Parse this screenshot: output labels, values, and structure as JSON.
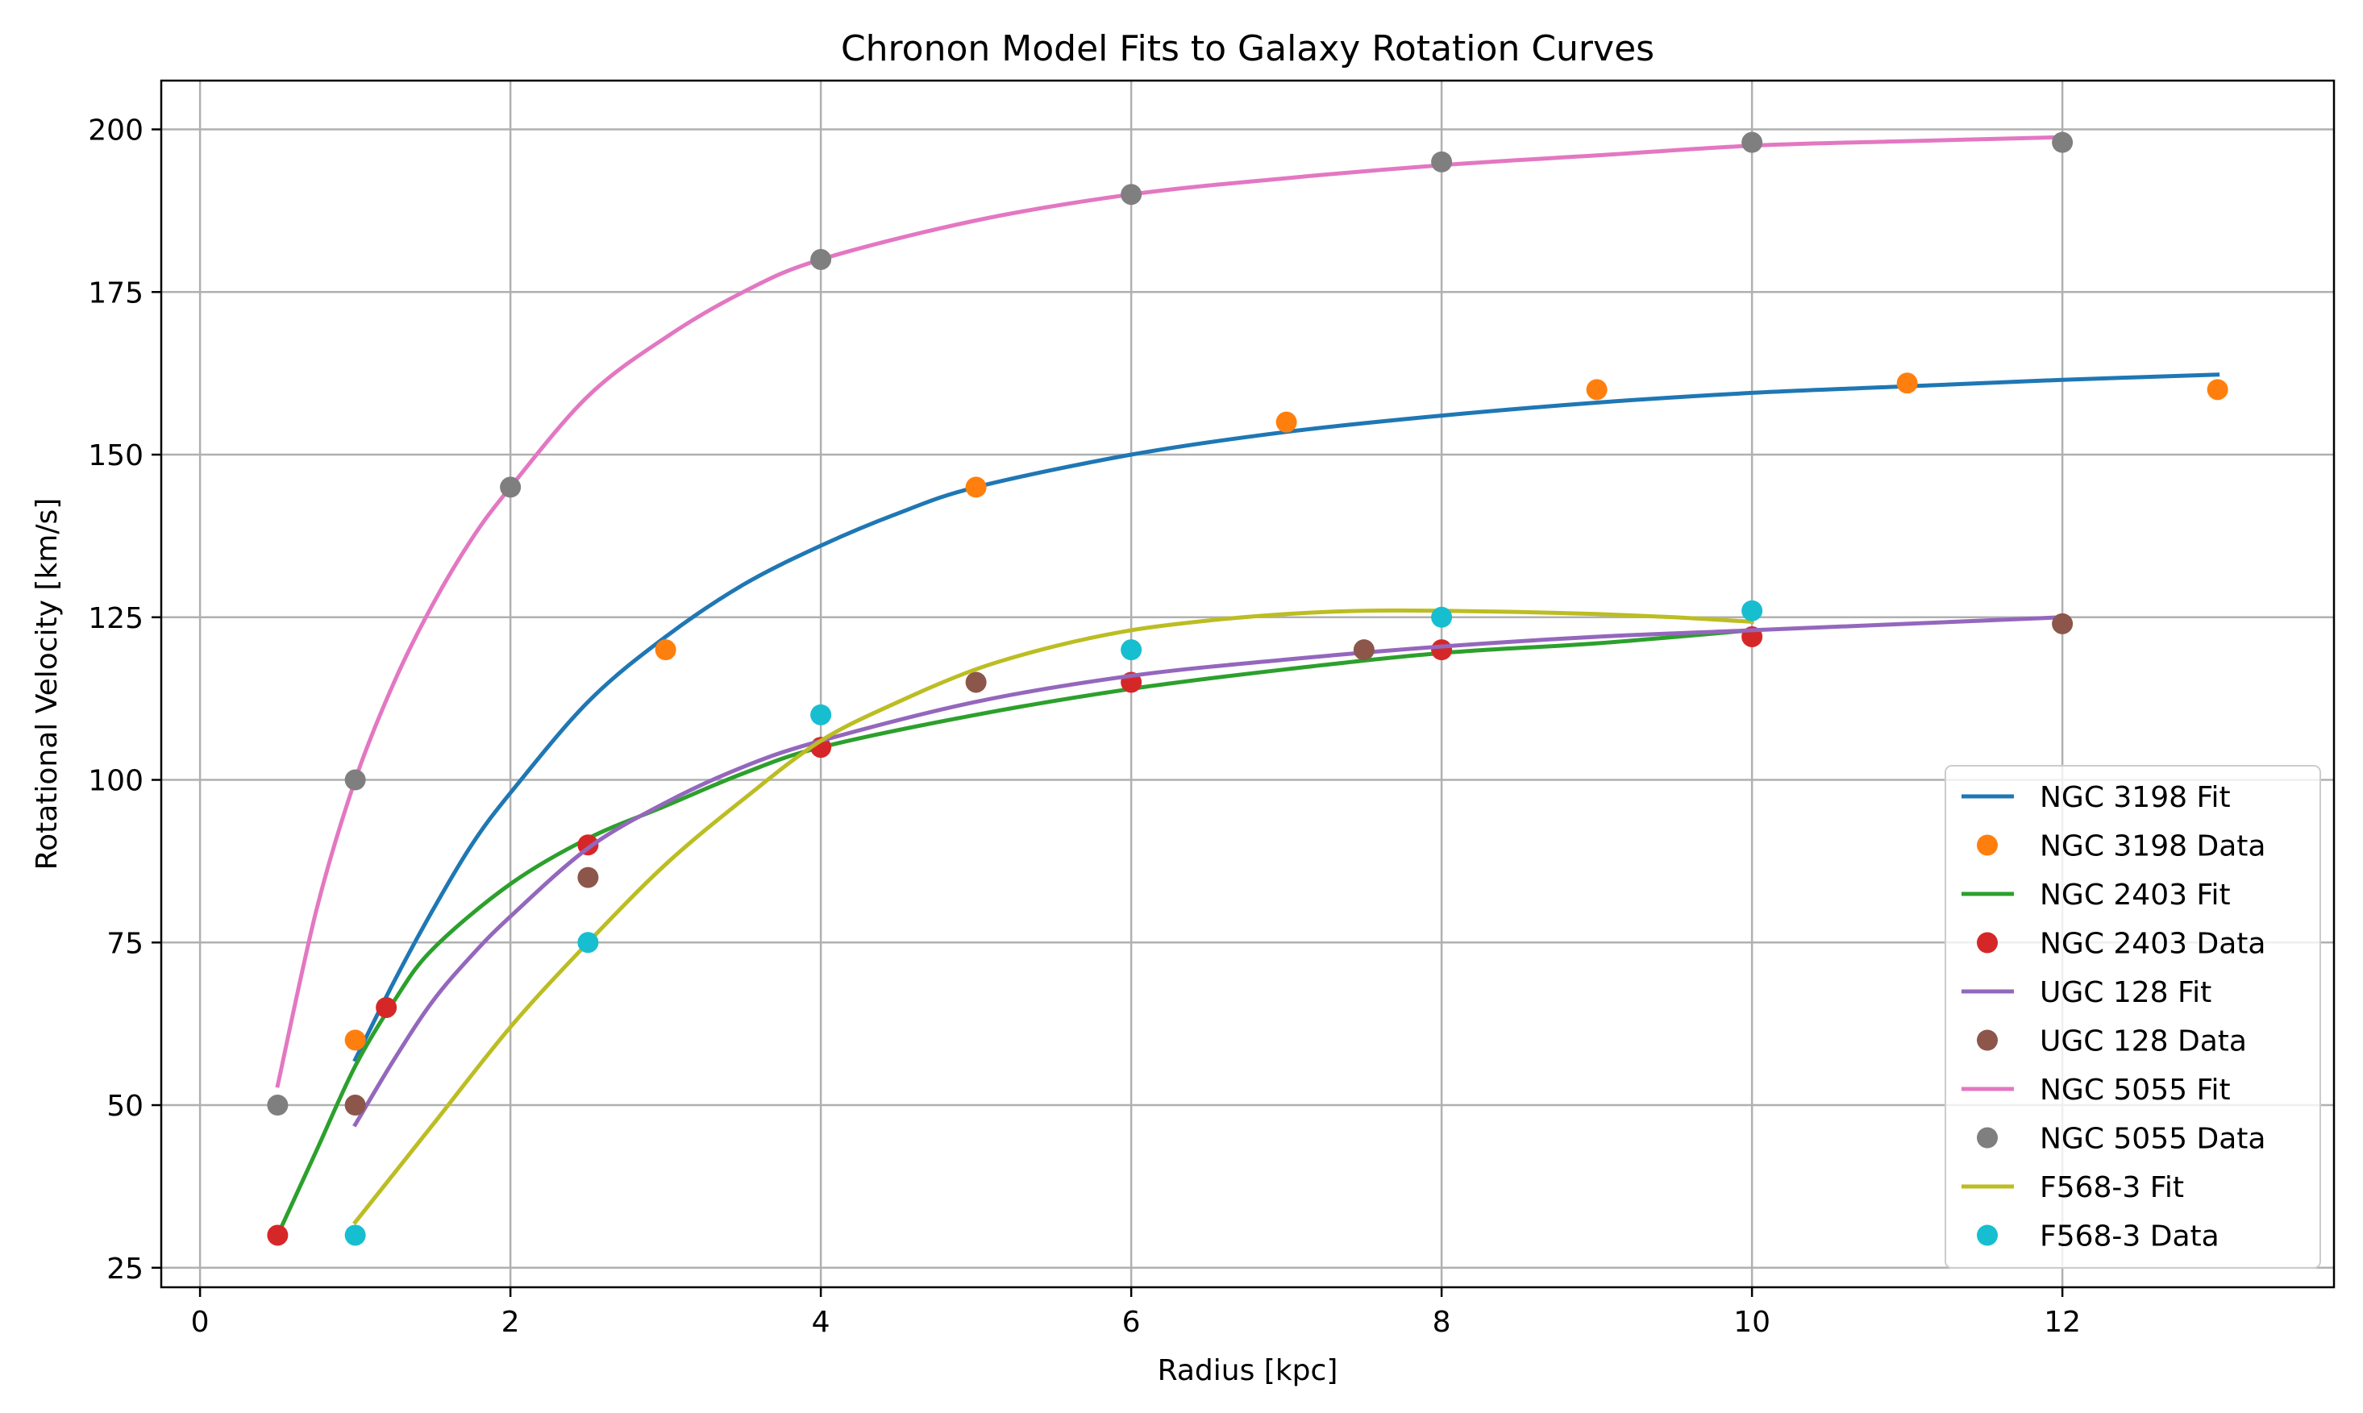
{
  "chart_data": {
    "type": "line",
    "title": "Chronon Model Fits to Galaxy Rotation Curves",
    "xlabel": "Radius [kpc]",
    "ylabel": "Rotational Velocity [km/s]",
    "xlim": [
      -0.25,
      13.75
    ],
    "ylim": [
      22,
      207.5
    ],
    "xticks": [
      0,
      2,
      4,
      6,
      8,
      10,
      12
    ],
    "yticks": [
      25,
      50,
      75,
      100,
      125,
      150,
      175,
      200
    ],
    "grid": true,
    "legend_position": "lower right",
    "series": [
      {
        "name": "NGC 3198 Fit",
        "kind": "line",
        "color": "#1f77b4",
        "x": [
          1.0,
          1.25,
          1.5,
          1.75,
          2.0,
          2.5,
          3.0,
          3.5,
          4.0,
          4.5,
          5.0,
          6.0,
          7.0,
          8.0,
          9.0,
          10.0,
          11.0,
          12.0,
          13.0
        ],
        "y": [
          57,
          69,
          80,
          90,
          98,
          112,
          122,
          130,
          136,
          141,
          145,
          150,
          153.5,
          156,
          158,
          159.5,
          160.5,
          161.5,
          162.3
        ]
      },
      {
        "name": "NGC 3198 Data",
        "kind": "scatter",
        "color": "#ff7f0e",
        "x": [
          1,
          3,
          5,
          7,
          9,
          11,
          13
        ],
        "y": [
          60,
          120,
          145,
          155,
          160,
          161,
          160
        ]
      },
      {
        "name": "NGC 2403 Fit",
        "kind": "line",
        "color": "#2ca02c",
        "x": [
          0.5,
          0.75,
          1.0,
          1.25,
          1.5,
          2.0,
          2.5,
          3.0,
          3.5,
          4.0,
          5.0,
          6.0,
          7.0,
          8.0,
          9.0,
          10.0
        ],
        "y": [
          30,
          43,
          56,
          66,
          74,
          84,
          91,
          96,
          101,
          105,
          110,
          114,
          117,
          119.5,
          121,
          123
        ]
      },
      {
        "name": "NGC 2403 Data",
        "kind": "scatter",
        "color": "#d62728",
        "x": [
          0.5,
          1.2,
          2.5,
          4,
          6,
          8,
          10
        ],
        "y": [
          30,
          65,
          90,
          105,
          115,
          120,
          122
        ]
      },
      {
        "name": "UGC 128 Fit",
        "kind": "line",
        "color": "#9467bd",
        "x": [
          1.0,
          1.25,
          1.5,
          1.75,
          2.0,
          2.5,
          3.0,
          3.5,
          4.0,
          5.0,
          6.0,
          7.0,
          8.0,
          9.0,
          10.0,
          11.0,
          12.0
        ],
        "y": [
          47,
          57,
          66,
          73,
          79,
          89.5,
          96.5,
          102,
          106,
          112,
          116,
          118.5,
          120.5,
          122,
          123,
          124,
          125
        ]
      },
      {
        "name": "UGC 128 Data",
        "kind": "scatter",
        "color": "#8c564b",
        "x": [
          1,
          2.5,
          5,
          7.5,
          12
        ],
        "y": [
          50,
          85,
          115,
          120,
          124
        ]
      },
      {
        "name": "NGC 5055 Fit",
        "kind": "line",
        "color": "#e377c2",
        "x": [
          0.5,
          0.75,
          1.0,
          1.25,
          1.5,
          1.75,
          2.0,
          2.5,
          3.0,
          3.5,
          4.0,
          5.0,
          6.0,
          7.0,
          8.0,
          9.0,
          10.0,
          11.0,
          12.0
        ],
        "y": [
          53,
          80,
          100,
          115,
          127,
          137,
          145,
          159,
          168,
          175,
          180,
          186,
          190,
          192.5,
          194.5,
          196,
          197.5,
          198.2,
          198.8
        ]
      },
      {
        "name": "NGC 5055 Data",
        "kind": "scatter",
        "color": "#7f7f7f",
        "x": [
          0.5,
          1,
          2,
          4,
          6,
          8,
          10,
          12
        ],
        "y": [
          50,
          100,
          145,
          180,
          190,
          195,
          198,
          198
        ]
      },
      {
        "name": "F568-3 Fit",
        "kind": "line",
        "color": "#bcbd22",
        "x": [
          1.0,
          1.5,
          2.0,
          2.5,
          3.0,
          3.5,
          4.0,
          4.5,
          5.0,
          5.5,
          6.0,
          6.5,
          7.0,
          7.5,
          8.0,
          8.5,
          9.0,
          9.5,
          10.0
        ],
        "y": [
          32,
          47,
          62,
          75,
          87,
          97,
          106,
          112,
          117,
          120.5,
          123,
          124.5,
          125.5,
          126,
          126,
          125.8,
          125.5,
          125,
          124.3
        ]
      },
      {
        "name": "F568-3 Data",
        "kind": "scatter",
        "color": "#17becf",
        "x": [
          1,
          2.5,
          4,
          6,
          8,
          10
        ],
        "y": [
          30,
          75,
          110,
          120,
          125,
          126
        ]
      }
    ]
  }
}
